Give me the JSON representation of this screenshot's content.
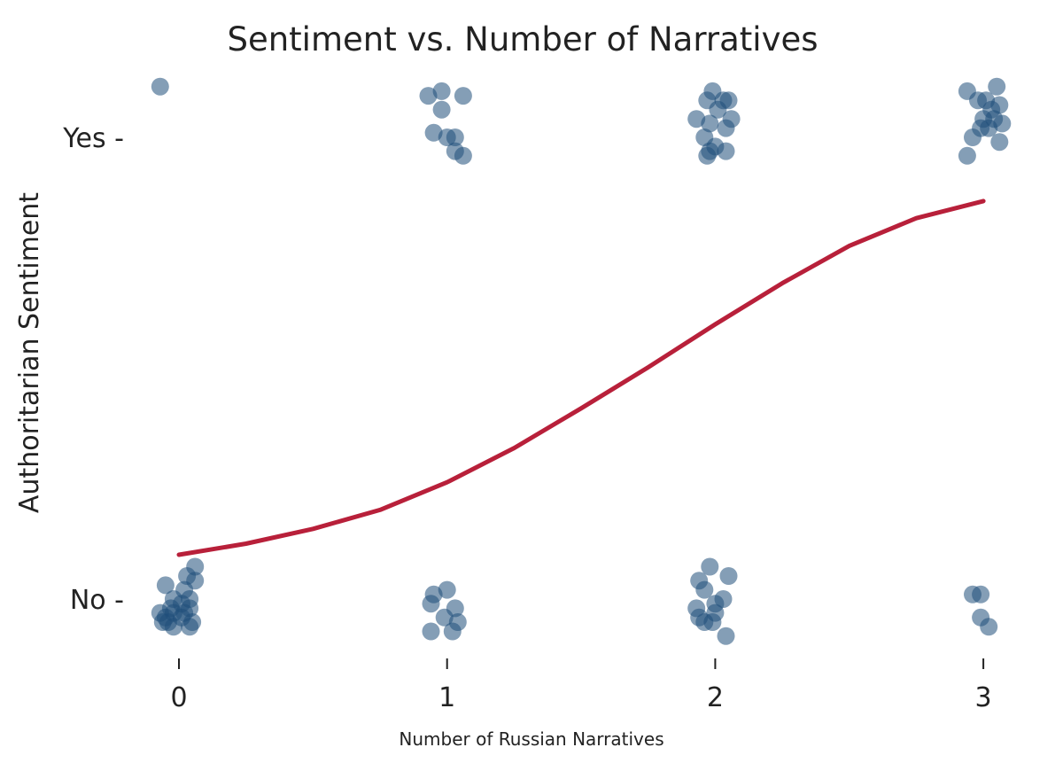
{
  "chart_data": {
    "type": "scatter",
    "title": "Sentiment vs. Number of Narratives",
    "xlabel": "Number of Russian Narratives",
    "ylabel": "Authoritarian Sentiment",
    "x_ticks": [
      "0",
      "1",
      "2",
      "3"
    ],
    "y_ticks": [
      "No -",
      "Yes -"
    ],
    "xlim": [
      -0.3,
      3.1
    ],
    "ylim": [
      -0.11,
      1.11
    ],
    "grid": false,
    "point_color": "#1f4e7a",
    "line_color": "#b8203a",
    "points": [
      {
        "x": -0.07,
        "y": 1.11
      },
      {
        "x": 0.06,
        "y": 0.07
      },
      {
        "x": 0.03,
        "y": 0.05
      },
      {
        "x": -0.05,
        "y": 0.03
      },
      {
        "x": 0.06,
        "y": 0.04
      },
      {
        "x": -0.02,
        "y": 0.0
      },
      {
        "x": 0.02,
        "y": 0.02
      },
      {
        "x": -0.07,
        "y": -0.03
      },
      {
        "x": 0.01,
        "y": -0.04
      },
      {
        "x": 0.04,
        "y": -0.02
      },
      {
        "x": -0.03,
        "y": -0.02
      },
      {
        "x": 0.04,
        "y": 0.0
      },
      {
        "x": -0.05,
        "y": -0.04
      },
      {
        "x": -0.02,
        "y": -0.06
      },
      {
        "x": 0.01,
        "y": -0.01
      },
      {
        "x": 0.04,
        "y": -0.06
      },
      {
        "x": -0.06,
        "y": -0.05
      },
      {
        "x": -0.04,
        "y": -0.05
      },
      {
        "x": 0.02,
        "y": -0.03
      },
      {
        "x": -0.02,
        "y": -0.03
      },
      {
        "x": 0.05,
        "y": -0.05
      },
      {
        "x": 0.93,
        "y": 1.09
      },
      {
        "x": 0.98,
        "y": 1.1
      },
      {
        "x": 1.06,
        "y": 1.09
      },
      {
        "x": 0.98,
        "y": 1.06
      },
      {
        "x": 0.95,
        "y": 1.01
      },
      {
        "x": 1.0,
        "y": 1.0
      },
      {
        "x": 1.03,
        "y": 1.0
      },
      {
        "x": 1.03,
        "y": 0.97
      },
      {
        "x": 1.06,
        "y": 0.96
      },
      {
        "x": 1.0,
        "y": 0.02
      },
      {
        "x": 0.95,
        "y": 0.01
      },
      {
        "x": 0.94,
        "y": -0.01
      },
      {
        "x": 1.03,
        "y": -0.02
      },
      {
        "x": 0.99,
        "y": -0.04
      },
      {
        "x": 1.04,
        "y": -0.05
      },
      {
        "x": 0.94,
        "y": -0.07
      },
      {
        "x": 1.02,
        "y": -0.07
      },
      {
        "x": 1.99,
        "y": 1.1
      },
      {
        "x": 1.97,
        "y": 1.08
      },
      {
        "x": 2.03,
        "y": 1.08
      },
      {
        "x": 2.05,
        "y": 1.08
      },
      {
        "x": 2.01,
        "y": 1.06
      },
      {
        "x": 1.93,
        "y": 1.04
      },
      {
        "x": 2.06,
        "y": 1.04
      },
      {
        "x": 1.98,
        "y": 1.03
      },
      {
        "x": 2.04,
        "y": 1.02
      },
      {
        "x": 1.96,
        "y": 1.0
      },
      {
        "x": 2.0,
        "y": 0.98
      },
      {
        "x": 1.98,
        "y": 0.97
      },
      {
        "x": 2.04,
        "y": 0.97
      },
      {
        "x": 1.97,
        "y": 0.96
      },
      {
        "x": 1.98,
        "y": 0.07
      },
      {
        "x": 2.05,
        "y": 0.05
      },
      {
        "x": 1.94,
        "y": 0.04
      },
      {
        "x": 1.96,
        "y": 0.02
      },
      {
        "x": 2.03,
        "y": 0.0
      },
      {
        "x": 2.0,
        "y": -0.01
      },
      {
        "x": 1.93,
        "y": -0.02
      },
      {
        "x": 2.0,
        "y": -0.03
      },
      {
        "x": 1.94,
        "y": -0.04
      },
      {
        "x": 1.96,
        "y": -0.05
      },
      {
        "x": 1.99,
        "y": -0.05
      },
      {
        "x": 2.04,
        "y": -0.08
      },
      {
        "x": 2.94,
        "y": 1.1
      },
      {
        "x": 3.05,
        "y": 1.11
      },
      {
        "x": 2.98,
        "y": 1.08
      },
      {
        "x": 3.01,
        "y": 1.08
      },
      {
        "x": 3.06,
        "y": 1.07
      },
      {
        "x": 3.03,
        "y": 1.06
      },
      {
        "x": 3.0,
        "y": 1.04
      },
      {
        "x": 3.04,
        "y": 1.04
      },
      {
        "x": 2.99,
        "y": 1.02
      },
      {
        "x": 3.02,
        "y": 1.02
      },
      {
        "x": 3.07,
        "y": 1.03
      },
      {
        "x": 2.96,
        "y": 1.0
      },
      {
        "x": 3.06,
        "y": 0.99
      },
      {
        "x": 2.94,
        "y": 0.96
      },
      {
        "x": 2.96,
        "y": 0.01
      },
      {
        "x": 2.99,
        "y": 0.01
      },
      {
        "x": 2.99,
        "y": -0.04
      },
      {
        "x": 3.02,
        "y": -0.06
      }
    ],
    "curve": {
      "label": "",
      "x": [
        0,
        0.25,
        0.5,
        0.75,
        1,
        1.25,
        1.5,
        1.75,
        2,
        2.25,
        2.5,
        2.75,
        3
      ],
      "y": [
        0.096,
        0.12,
        0.152,
        0.193,
        0.253,
        0.327,
        0.413,
        0.502,
        0.595,
        0.684,
        0.765,
        0.825,
        0.862
      ]
    }
  }
}
